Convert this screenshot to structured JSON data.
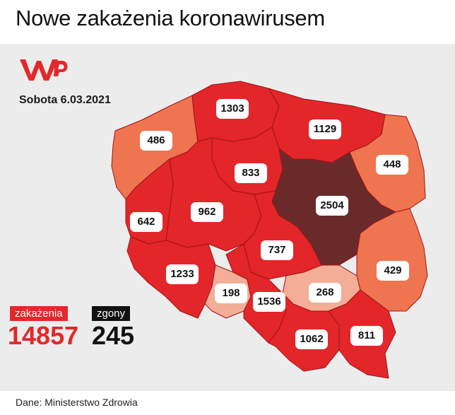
{
  "title": "Nowe zakażenia koronawirusem",
  "date": "Sobota 6.03.2021",
  "source": "Dane: Ministerstwo Zdrowia",
  "logo_icon": "wp-logo-icon",
  "legend": {
    "infections_label": "zakażenia",
    "infections_value": "14857",
    "deaths_label": "zgony",
    "deaths_value": "245"
  },
  "colors": {
    "high": "#e3262a",
    "medium": "#ef7450",
    "low": "#f4ad96",
    "highest": "#6b2a2a",
    "accent": "#e3282b"
  },
  "regions": [
    {
      "id": "pomorskie",
      "value": "1303",
      "level": "high"
    },
    {
      "id": "zachodniopomorskie",
      "value": "486",
      "level": "medium"
    },
    {
      "id": "warminsko-mazurskie",
      "value": "1129",
      "level": "high"
    },
    {
      "id": "podlaskie",
      "value": "448",
      "level": "medium"
    },
    {
      "id": "kujawsko-pomorskie",
      "value": "833",
      "level": "high"
    },
    {
      "id": "mazowieckie",
      "value": "2504",
      "level": "highest"
    },
    {
      "id": "lubuskie",
      "value": "642",
      "level": "high"
    },
    {
      "id": "wielkopolskie",
      "value": "962",
      "level": "high"
    },
    {
      "id": "lodzkie",
      "value": "737",
      "level": "high"
    },
    {
      "id": "lubelskie",
      "value": "429",
      "level": "medium"
    },
    {
      "id": "dolnoslaskie",
      "value": "1233",
      "level": "high"
    },
    {
      "id": "opolskie",
      "value": "198",
      "level": "low"
    },
    {
      "id": "slaskie",
      "value": "1536",
      "level": "high"
    },
    {
      "id": "swietokrzyskie",
      "value": "268",
      "level": "low"
    },
    {
      "id": "malopolskie",
      "value": "1062",
      "level": "high"
    },
    {
      "id": "podkarpackie",
      "value": "811",
      "level": "high"
    }
  ]
}
